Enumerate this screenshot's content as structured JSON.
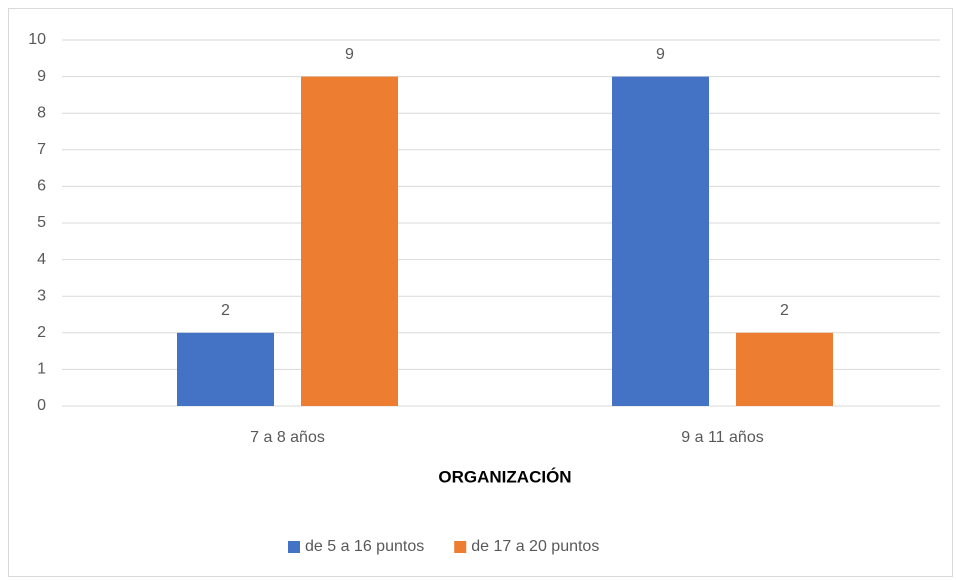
{
  "chart_data": {
    "type": "bar",
    "categories": [
      "7 a 8 años",
      "9 a 11 años"
    ],
    "series": [
      {
        "name": "de 5 a 16 puntos",
        "color": "#4472c4",
        "values": [
          2,
          9
        ]
      },
      {
        "name": "de 17 a 20 puntos",
        "color": "#ed7d31",
        "values": [
          9,
          2
        ]
      }
    ],
    "xlabel": "ORGANIZACIÓN",
    "ylim": [
      0,
      10
    ],
    "yticks": [
      0,
      1,
      2,
      3,
      4,
      5,
      6,
      7,
      8,
      9,
      10
    ],
    "grid": true,
    "legend": "bottom"
  }
}
